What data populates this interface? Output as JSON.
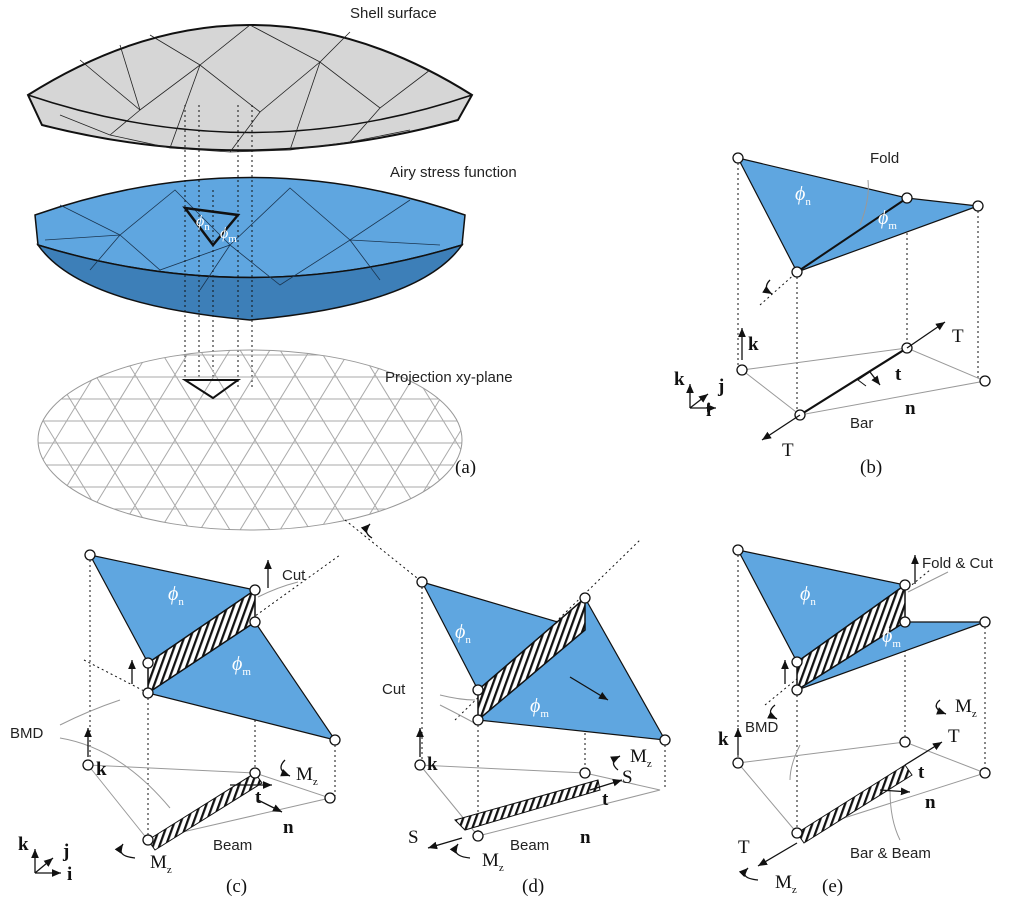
{
  "panel_a": {
    "shell": "Shell surface",
    "airy": "Airy stress function",
    "projection": "Projection xy-plane",
    "caption": "(a)",
    "phi_n": {
      "symbol": "ϕ",
      "sub": "n"
    },
    "phi_m": {
      "symbol": "ϕ",
      "sub": "m"
    }
  },
  "panel_b": {
    "caption": "(b)",
    "fold": "Fold",
    "phi_n": {
      "symbol": "ϕ",
      "sub": "n"
    },
    "phi_m": {
      "symbol": "ϕ",
      "sub": "m"
    },
    "axes": {
      "k": "k",
      "j": "j",
      "i": "i"
    },
    "vec_k": "k",
    "force_top": "T",
    "force_bottom": "T",
    "t": "t",
    "n": "n",
    "bar": "Bar"
  },
  "panel_c": {
    "caption": "(c)",
    "cut": "Cut",
    "bmd": "BMD",
    "phi_n": {
      "symbol": "ϕ",
      "sub": "n"
    },
    "phi_m": {
      "symbol": "ϕ",
      "sub": "m"
    },
    "vec_k": "k",
    "axes": {
      "k": "k",
      "j": "j",
      "i": "i"
    },
    "moment_right": {
      "symbol": "M",
      "sub": "z"
    },
    "moment_bottom": {
      "symbol": "M",
      "sub": "z"
    },
    "t": "t",
    "n": "n",
    "beam": "Beam"
  },
  "panel_d": {
    "caption": "(d)",
    "cut": "Cut",
    "phi_n": {
      "symbol": "ϕ",
      "sub": "n"
    },
    "phi_m": {
      "symbol": "ϕ",
      "sub": "m"
    },
    "vec_k": "k",
    "moment_right": {
      "symbol": "M",
      "sub": "z"
    },
    "moment_bottom": {
      "symbol": "M",
      "sub": "z"
    },
    "shear_right": "S",
    "shear_left": "S",
    "t": "t",
    "n": "n",
    "beam": "Beam"
  },
  "panel_e": {
    "caption": "(e)",
    "fold_cut": "Fold & Cut",
    "phi_n": {
      "symbol": "ϕ",
      "sub": "n"
    },
    "phi_m": {
      "symbol": "ϕ",
      "sub": "m"
    },
    "moment_top": {
      "symbol": "M",
      "sub": "z"
    },
    "vec_k": "k",
    "force_top": "T",
    "force_bottom": "T",
    "t": "t",
    "n": "n",
    "bmd": "BMD",
    "bar_beam": "Bar & Beam",
    "moment_bottom": {
      "symbol": "M",
      "sub": "z"
    }
  }
}
